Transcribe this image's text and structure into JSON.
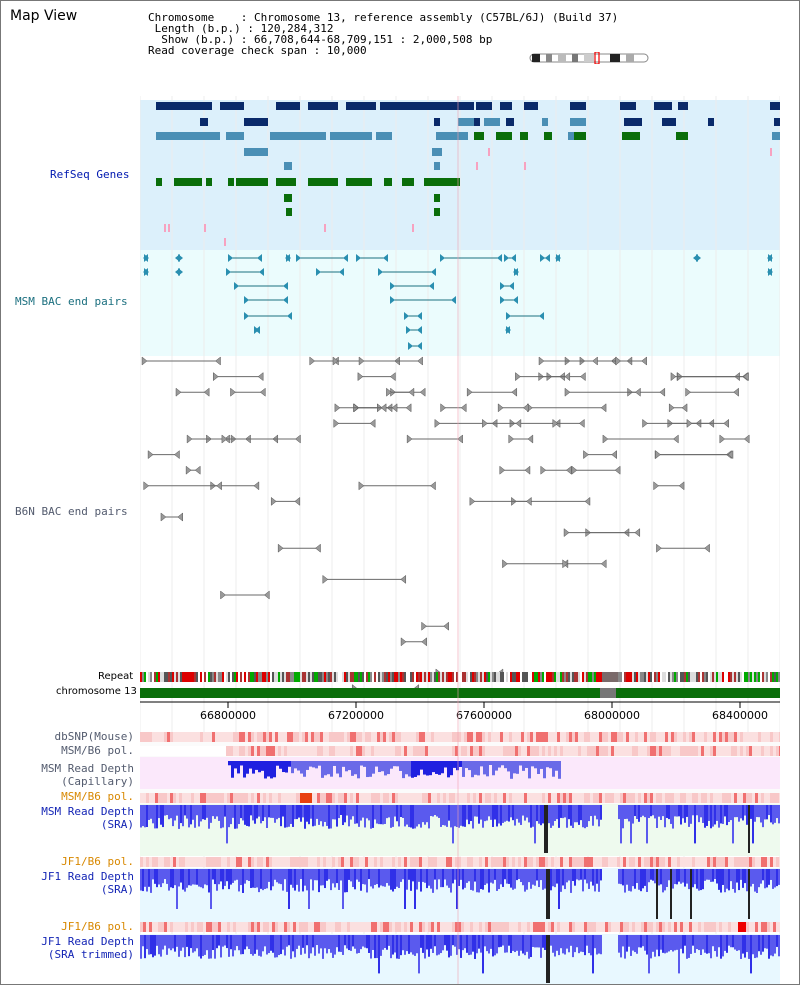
{
  "title": "Map View",
  "info": {
    "chromosome_label": "Chromosome",
    "chromosome_value": "Chromosome 13, reference assembly (C57BL/6J) (Build 37)",
    "length_label": "Length (b.p.)",
    "length_value": "120,284,312",
    "show_label": "Show (b.p.)",
    "show_value": "66,708,644-68,709,151 : 2,000,508 bp",
    "coverage_label": "Read coverage check span",
    "coverage_value": "10,000"
  },
  "tracks": {
    "refseq": "RefSeq Genes",
    "msm_bac": "MSM BAC end pairs",
    "b6n_bac": "B6N BAC end pairs",
    "repeat": "Repeat",
    "chromosome": "chromosome 13",
    "dbsnp": "dbSNP(Mouse)",
    "msm_b6_pol_1": "MSM/B6 pol.",
    "msm_depth_cap_1": "MSM Read Depth",
    "msm_depth_cap_2": "(Capillary)",
    "msm_b6_pol_2": "MSM/B6 pol.",
    "msm_depth_sra_1": "MSM Read Depth",
    "msm_depth_sra_2": "(SRA)",
    "jf1_b6_pol_1": "JF1/B6 pol.",
    "jf1_depth_sra_1": "JF1 Read Depth",
    "jf1_depth_sra_2": "(SRA)",
    "jf1_b6_pol_2": "JF1/B6 pol.",
    "jf1_depth_trim_1": "JF1 Read Depth",
    "jf1_depth_trim_2": "(SRA trimmed)"
  },
  "axis_ticks": [
    "66800000",
    "67200000",
    "67600000",
    "68000000",
    "68400000"
  ],
  "colors": {
    "refseq_bg": "#dcf0fb",
    "bac_bg": "#ebfcfd",
    "navy": "#0a2a6a",
    "steel": "#4a8fb5",
    "green": "#0a6e0a",
    "pink": "#f7a2c0",
    "chrom_green": "#0a6e0a",
    "depth_blue": "#3b3bff"
  }
}
